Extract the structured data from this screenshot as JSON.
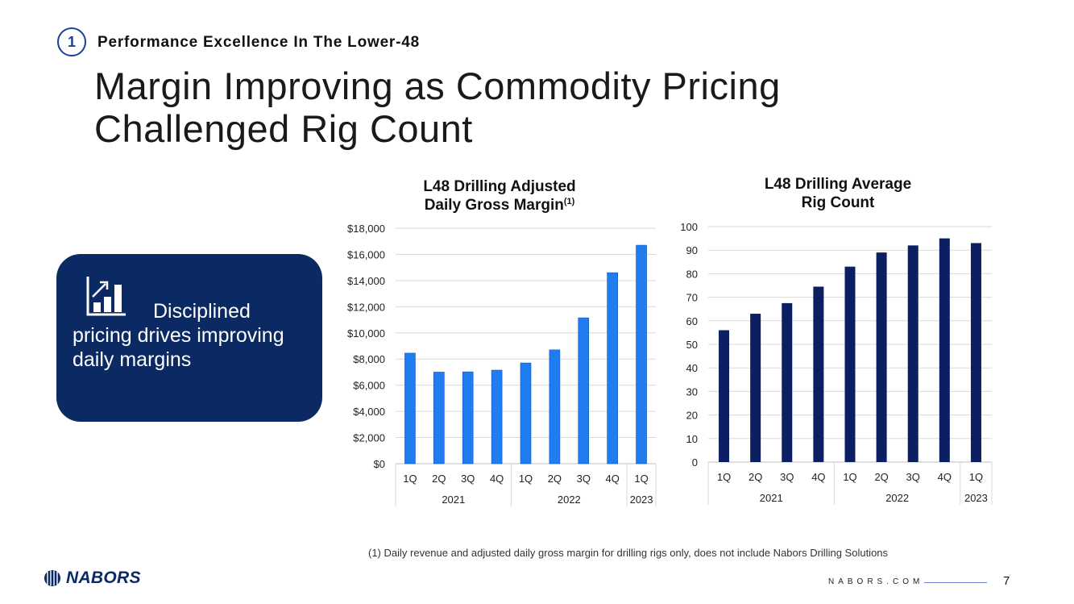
{
  "header": {
    "section_number": "1",
    "section_title": "Performance Excellence In The Lower-48",
    "page_title_line1": "Margin Improving as Commodity Pricing",
    "page_title_line2": "Challenged Rig Count"
  },
  "callout": {
    "icon": "bar-chart-growth-icon",
    "text_line1": "Disciplined",
    "text_line2": "pricing drives improving",
    "text_line3": "daily margins",
    "bg_color": "#0b2a63"
  },
  "chart_data": [
    {
      "type": "bar",
      "title_main": "L48 Drilling Adjusted",
      "title_line2": "Daily Gross Margin",
      "title_sup": "(1)",
      "categories": [
        "1Q",
        "2Q",
        "3Q",
        "4Q",
        "1Q",
        "2Q",
        "3Q",
        "4Q",
        "1Q"
      ],
      "groups": [
        {
          "label": "2021",
          "count": 4
        },
        {
          "label": "2022",
          "count": 4
        },
        {
          "label": "2023",
          "count": 1
        }
      ],
      "values": [
        8450,
        7000,
        7020,
        7150,
        7700,
        8700,
        11150,
        14600,
        16700
      ],
      "ylim": [
        0,
        18000
      ],
      "yticks": [
        0,
        2000,
        4000,
        6000,
        8000,
        10000,
        12000,
        14000,
        16000,
        18000
      ],
      "ytick_labels": [
        "$0",
        "$2,000",
        "$4,000",
        "$6,000",
        "$8,000",
        "$10,000",
        "$12,000",
        "$14,000",
        "$16,000",
        "$18,000"
      ],
      "color": "#1f7df0",
      "grid": true
    },
    {
      "type": "bar",
      "title_main": "L48 Drilling Average",
      "title_line2": "Rig Count",
      "categories": [
        "1Q",
        "2Q",
        "3Q",
        "4Q",
        "1Q",
        "2Q",
        "3Q",
        "4Q",
        "1Q"
      ],
      "groups": [
        {
          "label": "2021",
          "count": 4
        },
        {
          "label": "2022",
          "count": 4
        },
        {
          "label": "2023",
          "count": 1
        }
      ],
      "values": [
        56,
        63,
        67.5,
        74.5,
        83,
        89,
        92,
        95,
        93
      ],
      "ylim": [
        0,
        100
      ],
      "yticks": [
        0,
        10,
        20,
        30,
        40,
        50,
        60,
        70,
        80,
        90,
        100
      ],
      "ytick_labels": [
        "0",
        "10",
        "20",
        "30",
        "40",
        "50",
        "60",
        "70",
        "80",
        "90",
        "100"
      ],
      "color": "#0c1f63",
      "grid": true
    }
  ],
  "footer": {
    "footnote": "(1)   Daily revenue and adjusted daily gross margin for drilling rigs only, does not include Nabors Drilling Solutions",
    "logo_text": "NABORS",
    "website": "NABORS.COM",
    "page_number": "7"
  }
}
